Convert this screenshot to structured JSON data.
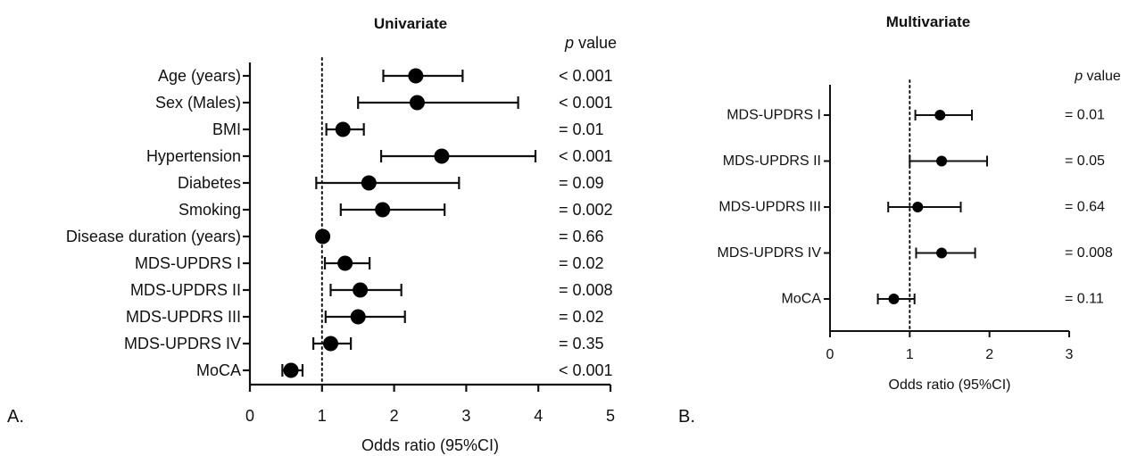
{
  "chart_data": [
    {
      "type": "forest",
      "panel_label": "A.",
      "title": "Univariate",
      "xlabel": "Odds ratio (95%CI)",
      "xlim": [
        0,
        5
      ],
      "xticks": [
        0,
        1,
        2,
        3,
        4,
        5
      ],
      "reference_line": 1,
      "pvalue_header_italic": "p",
      "pvalue_header_rest": " value",
      "rows": [
        {
          "label": "Age (years)",
          "or": 2.3,
          "lo": 1.85,
          "hi": 2.95,
          "p": "< 0.001"
        },
        {
          "label": "Sex (Males)",
          "or": 2.32,
          "lo": 1.5,
          "hi": 3.72,
          "p": "< 0.001"
        },
        {
          "label": "BMI",
          "or": 1.29,
          "lo": 1.06,
          "hi": 1.58,
          "p": "= 0.01"
        },
        {
          "label": "Hypertension",
          "or": 2.66,
          "lo": 1.82,
          "hi": 3.96,
          "p": "< 0.001"
        },
        {
          "label": "Diabetes",
          "or": 1.65,
          "lo": 0.92,
          "hi": 2.9,
          "p": "= 0.09"
        },
        {
          "label": "Smoking",
          "or": 1.84,
          "lo": 1.26,
          "hi": 2.7,
          "p": "= 0.002"
        },
        {
          "label": "Disease duration (years)",
          "or": 1.01,
          "lo": 0.99,
          "hi": 1.03,
          "p": "= 0.66"
        },
        {
          "label": "MDS-UPDRS I",
          "or": 1.32,
          "lo": 1.04,
          "hi": 1.66,
          "p": "= 0.02"
        },
        {
          "label": "MDS-UPDRS II",
          "or": 1.53,
          "lo": 1.12,
          "hi": 2.1,
          "p": "= 0.008"
        },
        {
          "label": "MDS-UPDRS III",
          "or": 1.5,
          "lo": 1.05,
          "hi": 2.15,
          "p": "= 0.02"
        },
        {
          "label": "MDS-UPDRS IV",
          "or": 1.12,
          "lo": 0.88,
          "hi": 1.4,
          "p": "= 0.35"
        },
        {
          "label": "MoCA",
          "or": 0.57,
          "lo": 0.45,
          "hi": 0.73,
          "p": "< 0.001"
        }
      ]
    },
    {
      "type": "forest",
      "panel_label": "B.",
      "title": "Multivariate",
      "xlabel": "Odds ratio (95%CI)",
      "xlim": [
        0,
        3
      ],
      "xticks": [
        0,
        1,
        2,
        3
      ],
      "reference_line": 1,
      "pvalue_header_italic": "p",
      "pvalue_header_rest": " value",
      "rows": [
        {
          "label": "MDS-UPDRS I",
          "or": 1.38,
          "lo": 1.07,
          "hi": 1.78,
          "p": "= 0.01"
        },
        {
          "label": "MDS-UPDRS II",
          "or": 1.4,
          "lo": 1.0,
          "hi": 1.97,
          "p": "= 0.05"
        },
        {
          "label": "MDS-UPDRS III",
          "or": 1.1,
          "lo": 0.73,
          "hi": 1.64,
          "p": "= 0.64"
        },
        {
          "label": "MDS-UPDRS IV",
          "or": 1.4,
          "lo": 1.08,
          "hi": 1.82,
          "p": "= 0.008"
        },
        {
          "label": "MoCA",
          "or": 0.8,
          "lo": 0.6,
          "hi": 1.06,
          "p": "= 0.11"
        }
      ]
    }
  ]
}
